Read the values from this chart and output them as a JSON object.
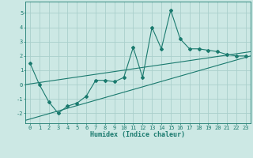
{
  "xlabel": "Humidex (Indice chaleur)",
  "background_color": "#cce8e4",
  "grid_color": "#aacfcc",
  "line_color": "#1a7a6e",
  "x_data": [
    0,
    1,
    2,
    3,
    4,
    5,
    6,
    7,
    8,
    9,
    10,
    11,
    12,
    13,
    14,
    15,
    16,
    17,
    18,
    19,
    20,
    21,
    22,
    23
  ],
  "y_main": [
    1.5,
    0.0,
    -1.2,
    -2.0,
    -1.5,
    -1.3,
    -0.8,
    0.3,
    0.3,
    0.2,
    0.5,
    2.6,
    0.5,
    4.0,
    2.5,
    5.2,
    3.2,
    2.5,
    2.5,
    2.4,
    2.3,
    2.1,
    2.0,
    2.0
  ],
  "reg_line1_x": [
    -0.5,
    23.5
  ],
  "reg_line1_y": [
    0.0,
    2.3
  ],
  "reg_line2_x": [
    -0.5,
    23.5
  ],
  "reg_line2_y": [
    -2.5,
    2.0
  ],
  "xlim": [
    -0.5,
    23.5
  ],
  "ylim": [
    -2.7,
    5.8
  ],
  "yticks": [
    -2,
    -1,
    0,
    1,
    2,
    3,
    4,
    5
  ],
  "xticks": [
    0,
    1,
    2,
    3,
    4,
    5,
    6,
    7,
    8,
    9,
    10,
    11,
    12,
    13,
    14,
    15,
    16,
    17,
    18,
    19,
    20,
    21,
    22,
    23
  ],
  "tick_fontsize": 5.0,
  "xlabel_fontsize": 6.0
}
